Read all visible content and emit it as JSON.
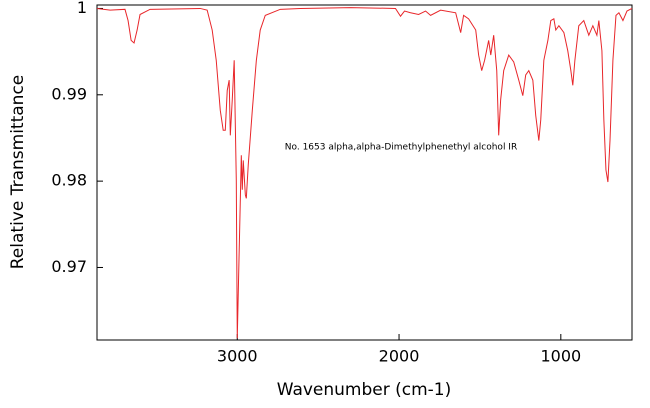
{
  "chart_data": {
    "type": "line",
    "annotation": "No. 1653 alpha,alpha-Dimethylphenethyl alcohol IR",
    "x_label": "Wavenumber (cm-1)",
    "y_label": "Relative Transmittance",
    "xlim": [
      3867,
      560
    ],
    "ylim": [
      0.9616,
      1.0004
    ],
    "xticks": [
      3000,
      2000,
      1000
    ],
    "yticks": [
      0.97,
      0.98,
      0.99,
      1
    ],
    "grid": false,
    "series": [
      {
        "color": "#e8262a",
        "x": [
          3867,
          3786,
          3694,
          3675,
          3656,
          3638,
          3619,
          3601,
          3539,
          3229,
          3186,
          3155,
          3130,
          3105,
          3087,
          3074,
          3062,
          3050,
          3043,
          3031,
          3019,
          3006,
          3000,
          2988,
          2975,
          2969,
          2963,
          2950,
          2944,
          2932,
          2907,
          2882,
          2858,
          2827,
          2734,
          2610,
          2300,
          2022,
          1991,
          1966,
          1929,
          1879,
          1836,
          1805,
          1743,
          1650,
          1619,
          1601,
          1570,
          1526,
          1508,
          1489,
          1471,
          1446,
          1433,
          1415,
          1396,
          1384,
          1372,
          1353,
          1322,
          1291,
          1260,
          1235,
          1217,
          1198,
          1173,
          1155,
          1136,
          1124,
          1105,
          1080,
          1062,
          1043,
          1031,
          1012,
          981,
          957,
          938,
          926,
          913,
          889,
          858,
          827,
          802,
          777,
          765,
          746,
          734,
          721,
          709,
          696,
          678,
          659,
          641,
          616,
          591,
          560
        ],
        "values": [
          1.0,
          0.9998,
          0.9999,
          0.9986,
          0.9963,
          0.996,
          0.9975,
          0.9993,
          0.9999,
          1.0,
          0.9998,
          0.9975,
          0.994,
          0.9882,
          0.9859,
          0.9859,
          0.9905,
          0.9917,
          0.9853,
          0.9894,
          0.994,
          0.9801,
          0.9618,
          0.972,
          0.983,
          0.979,
          0.9824,
          0.9784,
          0.978,
          0.9819,
          0.9882,
          0.994,
          0.9975,
          0.9992,
          0.9999,
          1.0,
          1.0001,
          1.0,
          0.9991,
          0.9997,
          0.9995,
          0.9993,
          0.9997,
          0.9992,
          0.9998,
          0.9995,
          0.9972,
          0.9992,
          0.9988,
          0.9975,
          0.9946,
          0.9928,
          0.994,
          0.9963,
          0.9946,
          0.9969,
          0.9928,
          0.9853,
          0.9894,
          0.9928,
          0.9946,
          0.9938,
          0.9917,
          0.9899,
          0.9923,
          0.9928,
          0.9917,
          0.9876,
          0.9847,
          0.9871,
          0.994,
          0.9963,
          0.9986,
          0.9988,
          0.9975,
          0.998,
          0.9972,
          0.9951,
          0.9928,
          0.9911,
          0.994,
          0.998,
          0.9986,
          0.9969,
          0.998,
          0.9969,
          0.9986,
          0.9951,
          0.9871,
          0.9813,
          0.9799,
          0.9847,
          0.994,
          0.9992,
          0.9995,
          0.9986,
          0.9997,
          1.0
        ]
      }
    ]
  }
}
